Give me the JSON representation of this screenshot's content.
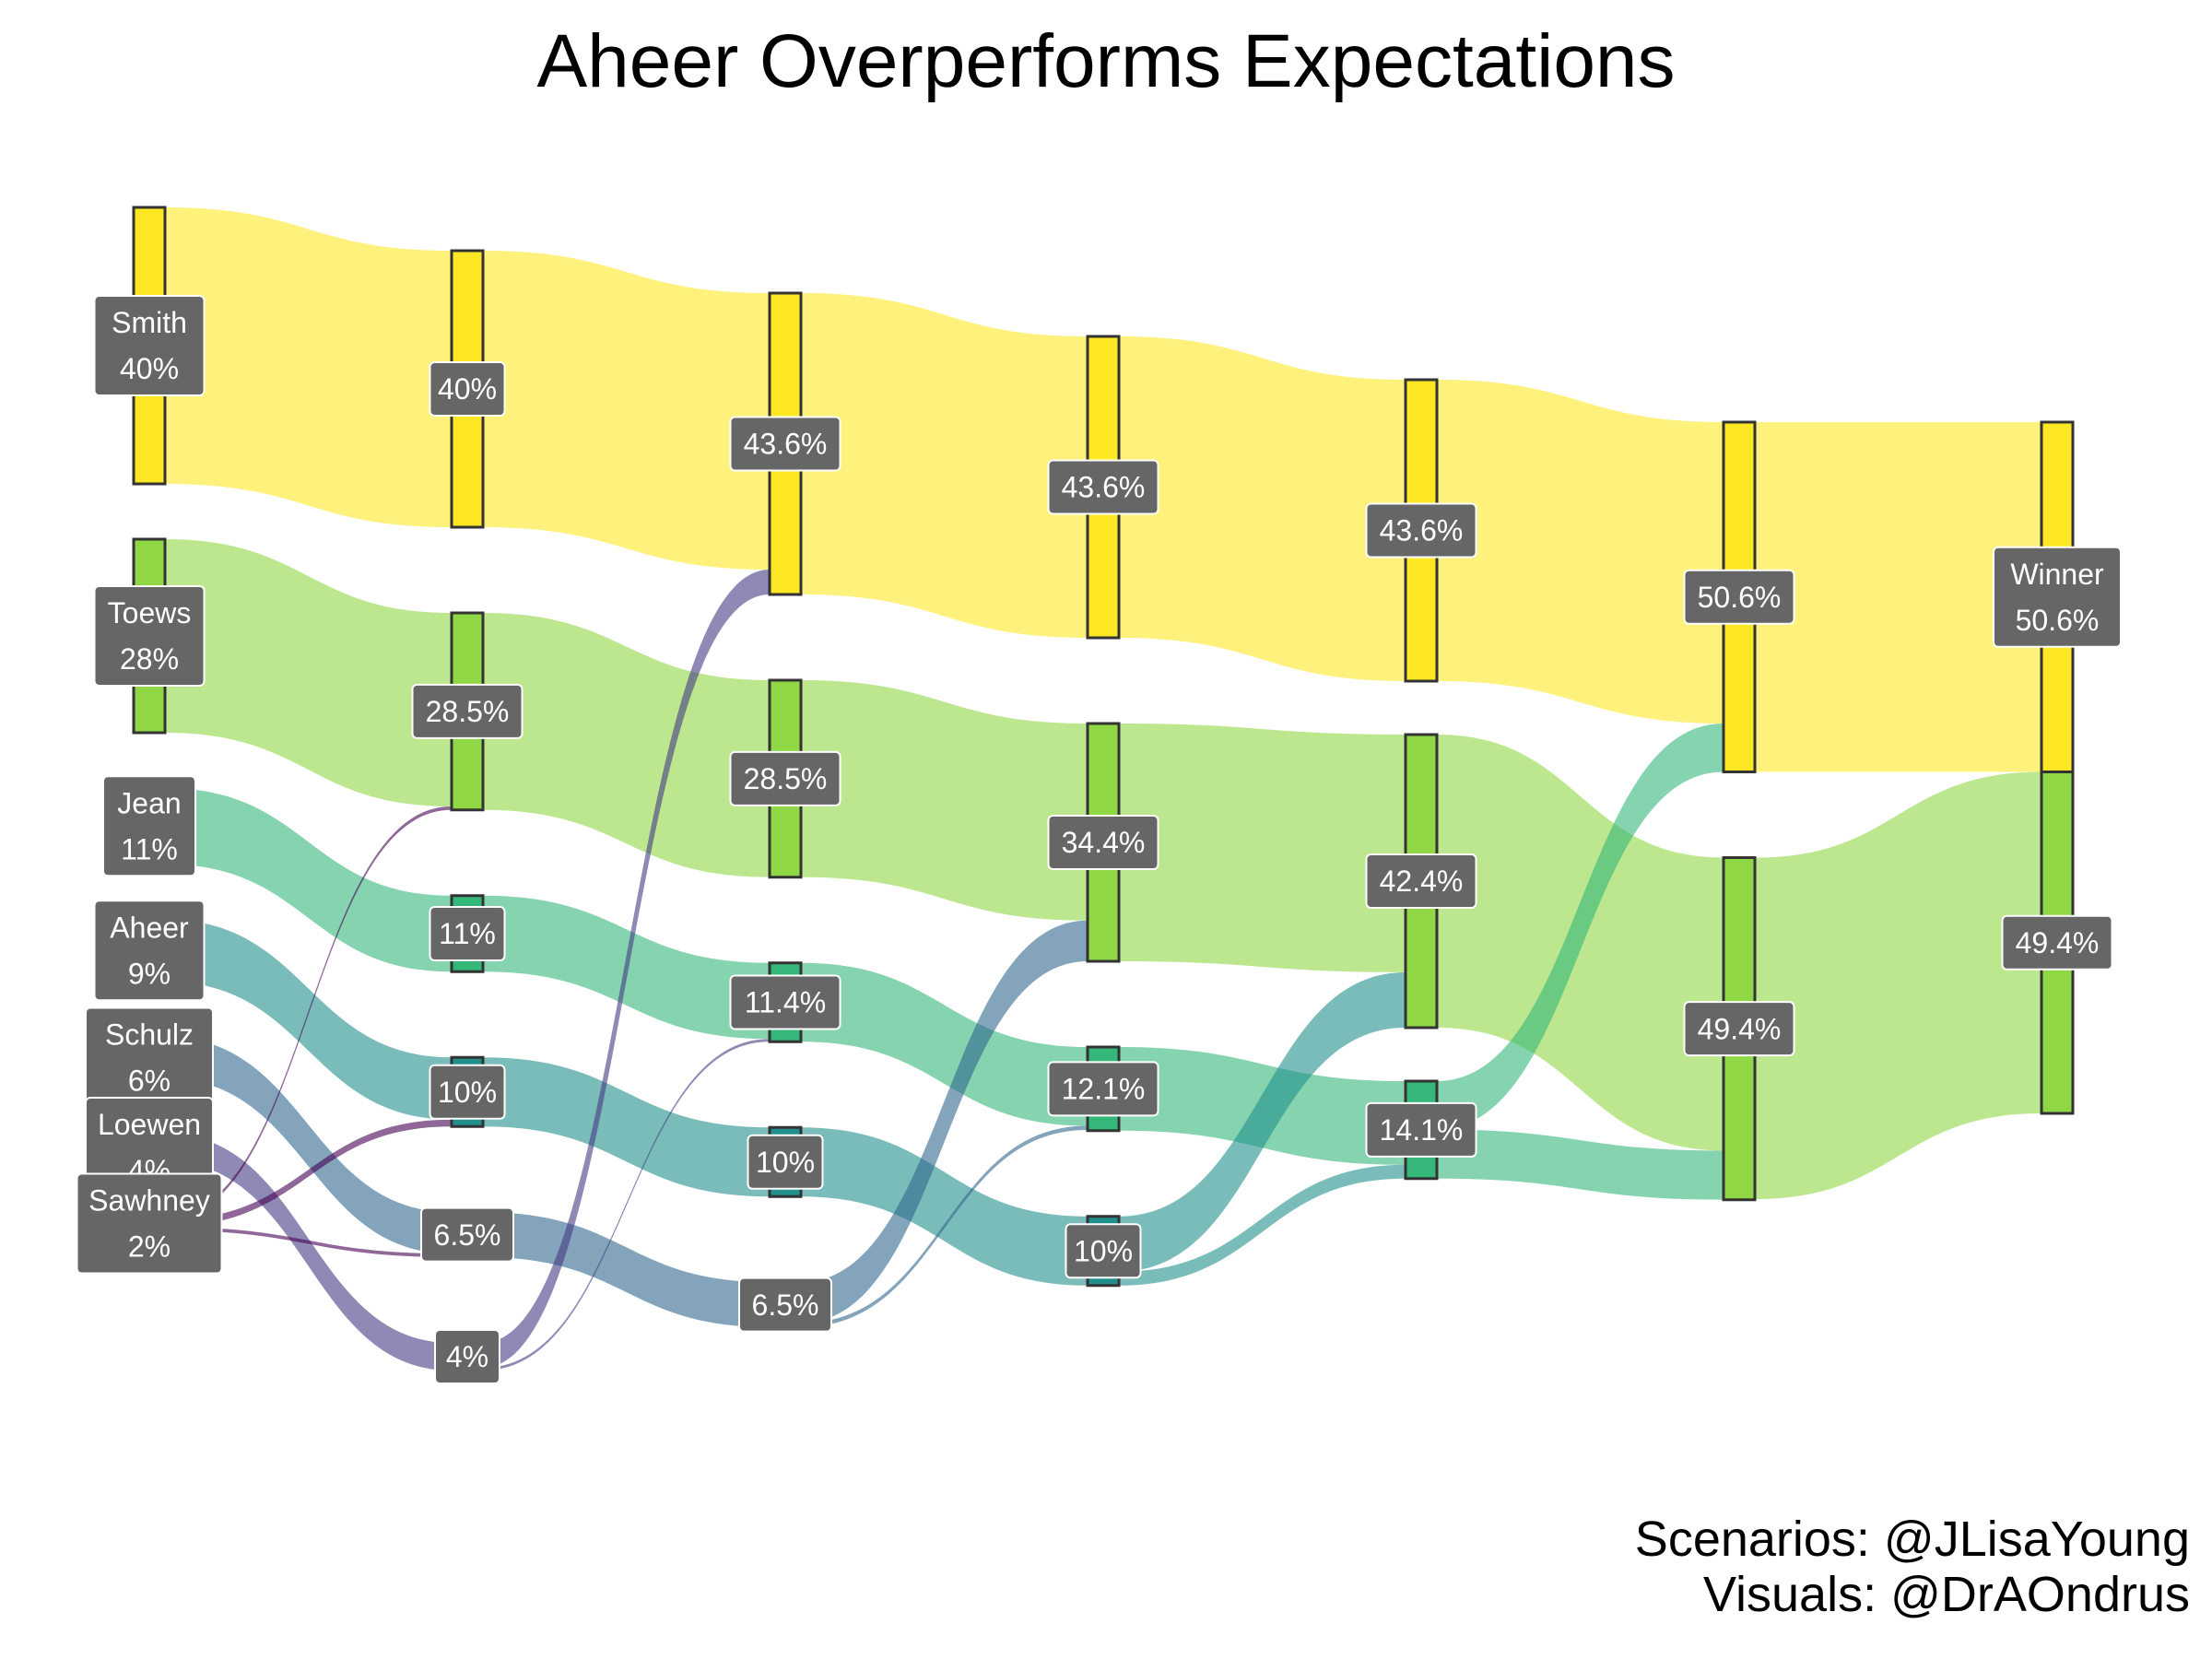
{
  "title": "Aheer Overperforms Expectations",
  "credits": [
    "Scenarios: @JLisaYoung",
    "Visuals: @DrAOndrus"
  ],
  "colors": {
    "Smith": "#fde725",
    "Toews": "#8fd744",
    "Jean": "#35b779",
    "Aheer": "#21908c",
    "Schulz": "#31688e",
    "Loewen": "#443a83",
    "Sawhney": "#440154"
  },
  "chart_data": {
    "type": "sankey",
    "stages": 7,
    "nodes": [
      {
        "id": "s0-Smith",
        "stage": 0,
        "candidate": "Smith",
        "label": "Smith",
        "value_label": "40%"
      },
      {
        "id": "s0-Toews",
        "stage": 0,
        "candidate": "Toews",
        "label": "Toews",
        "value_label": "28%"
      },
      {
        "id": "s0-Jean",
        "stage": 0,
        "candidate": "Jean",
        "label": "Jean",
        "value_label": "11%"
      },
      {
        "id": "s0-Aheer",
        "stage": 0,
        "candidate": "Aheer",
        "label": "Aheer",
        "value_label": "9%"
      },
      {
        "id": "s0-Schulz",
        "stage": 0,
        "candidate": "Schulz",
        "label": "Schulz",
        "value_label": "6%"
      },
      {
        "id": "s0-Loewen",
        "stage": 0,
        "candidate": "Loewen",
        "label": "Loewen",
        "value_label": "4%"
      },
      {
        "id": "s0-Sawhney",
        "stage": 0,
        "candidate": "Sawhney",
        "label": "Sawhney",
        "value_label": "2%"
      },
      {
        "id": "s1-Smith",
        "stage": 1,
        "candidate": "Smith",
        "label": "",
        "value_label": "40%"
      },
      {
        "id": "s1-Toews",
        "stage": 1,
        "candidate": "Toews",
        "label": "",
        "value_label": "28.5%"
      },
      {
        "id": "s1-Jean",
        "stage": 1,
        "candidate": "Jean",
        "label": "",
        "value_label": "11%"
      },
      {
        "id": "s1-Aheer",
        "stage": 1,
        "candidate": "Aheer",
        "label": "",
        "value_label": "10%"
      },
      {
        "id": "s1-Schulz",
        "stage": 1,
        "candidate": "Schulz",
        "label": "",
        "value_label": "6.5%"
      },
      {
        "id": "s1-Loewen",
        "stage": 1,
        "candidate": "Loewen",
        "label": "",
        "value_label": "4%"
      },
      {
        "id": "s2-Smith",
        "stage": 2,
        "candidate": "Smith",
        "label": "",
        "value_label": "43.6%"
      },
      {
        "id": "s2-Toews",
        "stage": 2,
        "candidate": "Toews",
        "label": "",
        "value_label": "28.5%"
      },
      {
        "id": "s2-Jean",
        "stage": 2,
        "candidate": "Jean",
        "label": "",
        "value_label": "11.4%"
      },
      {
        "id": "s2-Aheer",
        "stage": 2,
        "candidate": "Aheer",
        "label": "",
        "value_label": "10%"
      },
      {
        "id": "s2-Schulz",
        "stage": 2,
        "candidate": "Schulz",
        "label": "",
        "value_label": "6.5%"
      },
      {
        "id": "s3-Smith",
        "stage": 3,
        "candidate": "Smith",
        "label": "",
        "value_label": "43.6%"
      },
      {
        "id": "s3-Toews",
        "stage": 3,
        "candidate": "Toews",
        "label": "",
        "value_label": "34.4%"
      },
      {
        "id": "s3-Jean",
        "stage": 3,
        "candidate": "Jean",
        "label": "",
        "value_label": "12.1%"
      },
      {
        "id": "s3-Aheer",
        "stage": 3,
        "candidate": "Aheer",
        "label": "",
        "value_label": "10%"
      },
      {
        "id": "s4-Smith",
        "stage": 4,
        "candidate": "Smith",
        "label": "",
        "value_label": "43.6%"
      },
      {
        "id": "s4-Toews",
        "stage": 4,
        "candidate": "Toews",
        "label": "",
        "value_label": "42.4%"
      },
      {
        "id": "s4-Jean",
        "stage": 4,
        "candidate": "Jean",
        "label": "",
        "value_label": "14.1%"
      },
      {
        "id": "s5-Smith",
        "stage": 5,
        "candidate": "Smith",
        "label": "",
        "value_label": "50.6%"
      },
      {
        "id": "s5-Toews",
        "stage": 5,
        "candidate": "Toews",
        "label": "",
        "value_label": "49.4%"
      },
      {
        "id": "s6-Smith",
        "stage": 6,
        "candidate": "Smith",
        "label": "Winner",
        "value_label": "50.6%"
      },
      {
        "id": "s6-Toews",
        "stage": 6,
        "candidate": "Toews",
        "label": "",
        "value_label": "49.4%"
      }
    ],
    "links": [
      {
        "source": "s0-Smith",
        "target": "s1-Smith",
        "value": 40
      },
      {
        "source": "s0-Toews",
        "target": "s1-Toews",
        "value": 28
      },
      {
        "source": "s0-Jean",
        "target": "s1-Jean",
        "value": 11
      },
      {
        "source": "s0-Aheer",
        "target": "s1-Aheer",
        "value": 9
      },
      {
        "source": "s0-Schulz",
        "target": "s1-Schulz",
        "value": 6
      },
      {
        "source": "s0-Loewen",
        "target": "s1-Loewen",
        "value": 4
      },
      {
        "source": "s0-Sawhney",
        "target": "s1-Toews",
        "value": 0.5
      },
      {
        "source": "s0-Sawhney",
        "target": "s1-Aheer",
        "value": 1
      },
      {
        "source": "s0-Sawhney",
        "target": "s1-Schulz",
        "value": 0.5
      },
      {
        "source": "s1-Smith",
        "target": "s2-Smith",
        "value": 40
      },
      {
        "source": "s1-Toews",
        "target": "s2-Toews",
        "value": 28.5
      },
      {
        "source": "s1-Jean",
        "target": "s2-Jean",
        "value": 11
      },
      {
        "source": "s1-Aheer",
        "target": "s2-Aheer",
        "value": 10
      },
      {
        "source": "s1-Schulz",
        "target": "s2-Schulz",
        "value": 6.5
      },
      {
        "source": "s1-Loewen",
        "target": "s2-Smith",
        "value": 3.6
      },
      {
        "source": "s1-Loewen",
        "target": "s2-Jean",
        "value": 0.4
      },
      {
        "source": "s2-Smith",
        "target": "s3-Smith",
        "value": 43.6
      },
      {
        "source": "s2-Toews",
        "target": "s3-Toews",
        "value": 28.5
      },
      {
        "source": "s2-Jean",
        "target": "s3-Jean",
        "value": 11.4
      },
      {
        "source": "s2-Aheer",
        "target": "s3-Aheer",
        "value": 10
      },
      {
        "source": "s2-Schulz",
        "target": "s3-Toews",
        "value": 5.9
      },
      {
        "source": "s2-Schulz",
        "target": "s3-Jean",
        "value": 0.6
      },
      {
        "source": "s3-Smith",
        "target": "s4-Smith",
        "value": 43.6
      },
      {
        "source": "s3-Toews",
        "target": "s4-Toews",
        "value": 34.4
      },
      {
        "source": "s3-Jean",
        "target": "s4-Jean",
        "value": 12.1
      },
      {
        "source": "s3-Aheer",
        "target": "s4-Toews",
        "value": 8
      },
      {
        "source": "s3-Aheer",
        "target": "s4-Jean",
        "value": 2
      },
      {
        "source": "s4-Smith",
        "target": "s5-Smith",
        "value": 43.6
      },
      {
        "source": "s4-Toews",
        "target": "s5-Toews",
        "value": 42.4
      },
      {
        "source": "s4-Jean",
        "target": "s5-Smith",
        "value": 7
      },
      {
        "source": "s4-Jean",
        "target": "s5-Toews",
        "value": 7.1
      },
      {
        "source": "s5-Smith",
        "target": "s6-Smith",
        "value": 50.6
      },
      {
        "source": "s5-Toews",
        "target": "s6-Toews",
        "value": 49.4
      }
    ]
  }
}
